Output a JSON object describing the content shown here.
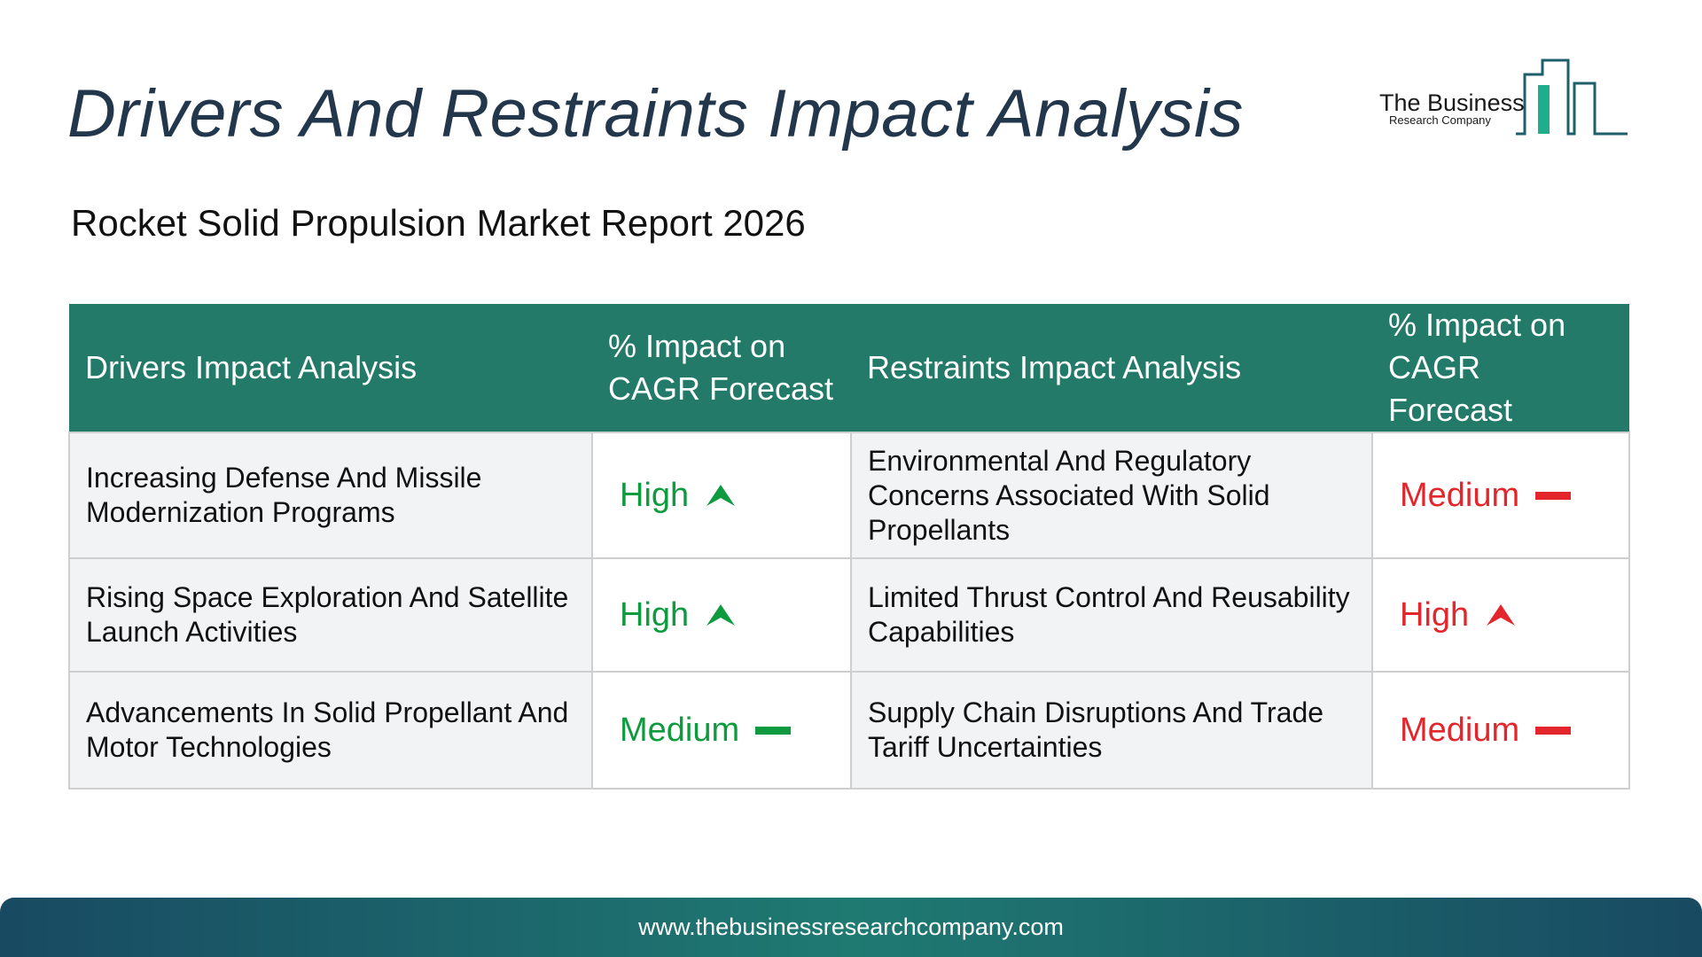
{
  "title": "Drivers And Restraints Impact Analysis",
  "subtitle": "Rocket Solid Propulsion Market Report 2026",
  "logo": {
    "name": "The Business",
    "sub": "Research Company"
  },
  "colors": {
    "header_bg": "#247a68",
    "title": "#23374c",
    "impact_positive": "#0e9a3e",
    "impact_negative": "#e3262c",
    "footer_dark": "#184a62",
    "footer_mid": "#1f7a72"
  },
  "table": {
    "headers": {
      "drivers": "Drivers Impact Analysis",
      "drivers_impact_line1": "% Impact on",
      "drivers_impact_line2": "CAGR Forecast",
      "restraints": "Restraints Impact Analysis",
      "restraints_impact_line1": "% Impact on",
      "restraints_impact_line2": "CAGR Forecast"
    },
    "rows": [
      {
        "driver": "Increasing Defense And Missile Modernization Programs",
        "driver_impact": "High",
        "driver_icon": "arrow-up-icon",
        "restraint": "Environmental And Regulatory Concerns Associated With Solid Propellants",
        "restraint_impact": "Medium",
        "restraint_icon": "dash-icon"
      },
      {
        "driver": "Rising Space Exploration And Satellite Launch Activities",
        "driver_impact": "High",
        "driver_icon": "arrow-up-icon",
        "restraint": "Limited Thrust Control And Reusability Capabilities",
        "restraint_impact": "High",
        "restraint_icon": "arrow-up-icon"
      },
      {
        "driver": "Advancements In Solid Propellant And Motor Technologies",
        "driver_impact": "Medium",
        "driver_icon": "dash-icon",
        "restraint": "Supply Chain Disruptions And Trade Tariff Uncertainties",
        "restraint_impact": "Medium",
        "restraint_icon": "dash-icon"
      }
    ]
  },
  "footer": {
    "url": "www.thebusinessresearchcompany.com"
  }
}
